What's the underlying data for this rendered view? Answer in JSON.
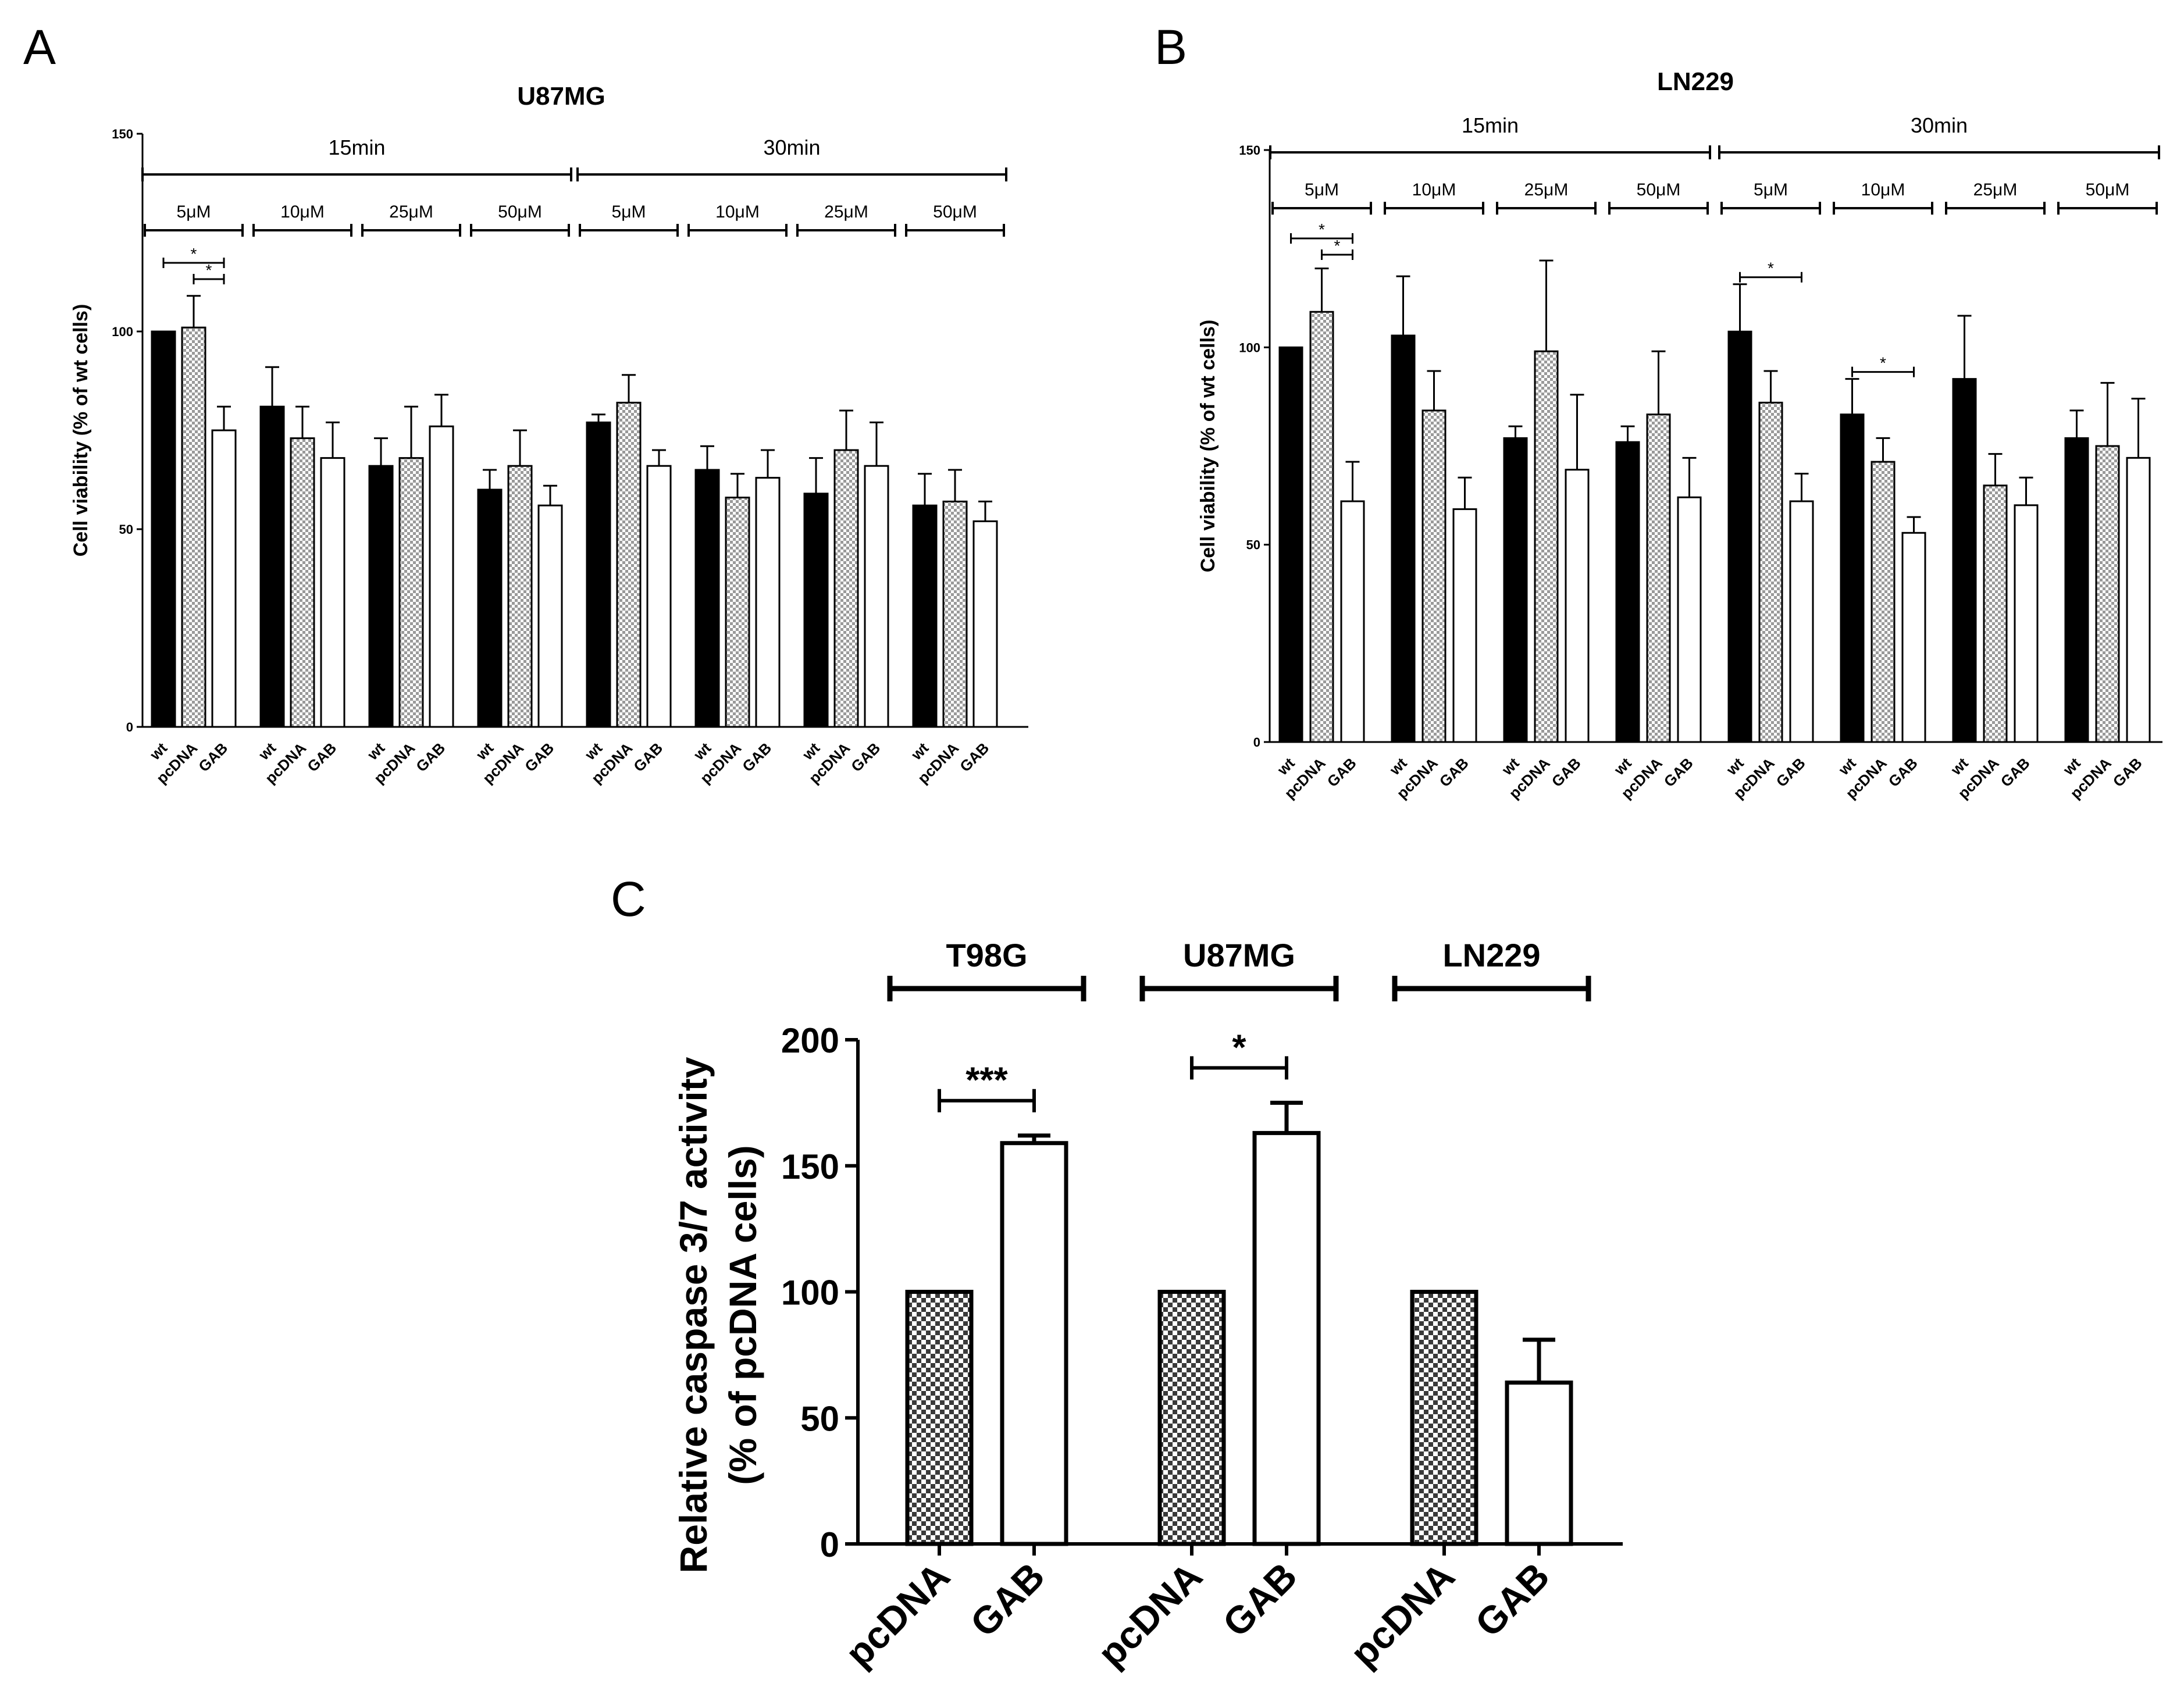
{
  "figure": {
    "colors": {
      "wt": "#000000",
      "pcDNA_fill": "#9a9a9a",
      "pcDNA_pattern": "#ffffff",
      "GAB": "#ffffff",
      "stroke": "#000000"
    }
  },
  "chart_data": [
    {
      "panel": "A",
      "type": "bar",
      "title": "U87MG",
      "ylabel": "Cell viability (% of wt cells)",
      "xlabel": "",
      "ylim": [
        0,
        150
      ],
      "yticks": [
        0,
        50,
        100,
        150
      ],
      "series_names": [
        "wt",
        "pcDNA",
        "GAB"
      ],
      "time_groups": [
        {
          "label": "15min",
          "groups": [
            0,
            1,
            2,
            3
          ]
        },
        {
          "label": "30min",
          "groups": [
            4,
            5,
            6,
            7
          ]
        }
      ],
      "groups": [
        {
          "label": "5μM",
          "values": [
            100,
            101,
            75
          ],
          "errors": [
            0,
            8,
            6
          ]
        },
        {
          "label": "10μM",
          "values": [
            81,
            73,
            68
          ],
          "errors": [
            10,
            8,
            9
          ]
        },
        {
          "label": "25μM",
          "values": [
            66,
            68,
            76
          ],
          "errors": [
            7,
            13,
            8
          ]
        },
        {
          "label": "50μM",
          "values": [
            60,
            66,
            56
          ],
          "errors": [
            5,
            9,
            5
          ]
        },
        {
          "label": "5μM",
          "values": [
            77,
            82,
            66
          ],
          "errors": [
            2,
            7,
            4
          ]
        },
        {
          "label": "10μM",
          "values": [
            65,
            58,
            63
          ],
          "errors": [
            6,
            6,
            7
          ]
        },
        {
          "label": "25μM",
          "values": [
            59,
            70,
            66
          ],
          "errors": [
            9,
            10,
            11
          ]
        },
        {
          "label": "50μM",
          "values": [
            56,
            57,
            52
          ],
          "errors": [
            8,
            8,
            5
          ]
        }
      ],
      "significance": [
        {
          "group": 0,
          "from": 0,
          "to": 2,
          "label": "*",
          "level": 1
        },
        {
          "group": 0,
          "from": 1,
          "to": 2,
          "label": "*",
          "level": 0
        }
      ]
    },
    {
      "panel": "B",
      "type": "bar",
      "title": "LN229",
      "ylabel": "Cell viability (% of wt cells)",
      "xlabel": "",
      "ylim": [
        0,
        150
      ],
      "yticks": [
        0,
        50,
        100,
        150
      ],
      "series_names": [
        "wt",
        "pcDNA",
        "GAB"
      ],
      "time_groups": [
        {
          "label": "15min",
          "groups": [
            0,
            1,
            2,
            3
          ]
        },
        {
          "label": "30min",
          "groups": [
            4,
            5,
            6,
            7
          ]
        }
      ],
      "groups": [
        {
          "label": "5μM",
          "values": [
            100,
            109,
            61
          ],
          "errors": [
            0,
            11,
            10
          ]
        },
        {
          "label": "10μM",
          "values": [
            103,
            84,
            59
          ],
          "errors": [
            15,
            10,
            8
          ]
        },
        {
          "label": "25μM",
          "values": [
            77,
            99,
            69
          ],
          "errors": [
            3,
            23,
            19
          ]
        },
        {
          "label": "50μM",
          "values": [
            76,
            83,
            62
          ],
          "errors": [
            4,
            16,
            10
          ]
        },
        {
          "label": "5μM",
          "values": [
            104,
            86,
            61
          ],
          "errors": [
            12,
            8,
            7
          ]
        },
        {
          "label": "10μM",
          "values": [
            83,
            71,
            53
          ],
          "errors": [
            9,
            6,
            4
          ]
        },
        {
          "label": "25μM",
          "values": [
            92,
            65,
            60
          ],
          "errors": [
            16,
            8,
            7
          ]
        },
        {
          "label": "50μM",
          "values": [
            77,
            75,
            72
          ],
          "errors": [
            7,
            16,
            15
          ]
        }
      ],
      "significance": [
        {
          "group": 0,
          "from": 0,
          "to": 2,
          "label": "*",
          "level": 1
        },
        {
          "group": 0,
          "from": 1,
          "to": 2,
          "label": "*",
          "level": 0
        },
        {
          "group": 4,
          "from": 0,
          "to": 2,
          "label": "*",
          "level": 0
        },
        {
          "group": 5,
          "from": 0,
          "to": 2,
          "label": "*",
          "level": 0
        }
      ]
    },
    {
      "panel": "C",
      "type": "bar",
      "title": "",
      "ylabel_lines": [
        "Relative caspase 3/7 activity",
        "(% of pcDNA cells)"
      ],
      "xlabel": "",
      "ylim": [
        0,
        200
      ],
      "yticks": [
        0,
        50,
        100,
        150,
        200
      ],
      "series_names": [
        "pcDNA",
        "GAB"
      ],
      "groups": [
        {
          "label": "T98G",
          "values": [
            100,
            159
          ],
          "errors": [
            0,
            3
          ]
        },
        {
          "label": "U87MG",
          "values": [
            100,
            163
          ],
          "errors": [
            0,
            12
          ]
        },
        {
          "label": "LN229",
          "values": [
            100,
            64
          ],
          "errors": [
            0,
            17
          ]
        }
      ],
      "significance": [
        {
          "group": 0,
          "from": 0,
          "to": 1,
          "label": "***",
          "level": 0
        },
        {
          "group": 1,
          "from": 0,
          "to": 1,
          "label": "*",
          "level": 0
        }
      ]
    }
  ]
}
